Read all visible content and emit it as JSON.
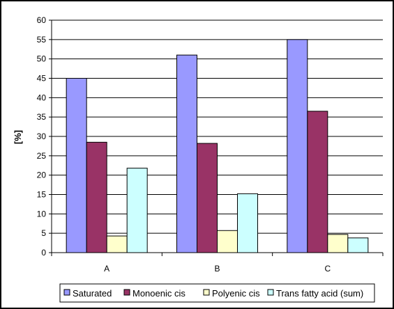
{
  "chart_data": {
    "type": "bar",
    "title": "",
    "xlabel": "",
    "ylabel": "[%]",
    "ylim": [
      0,
      60
    ],
    "yticks": [
      0,
      5,
      10,
      15,
      20,
      25,
      30,
      35,
      40,
      45,
      50,
      55,
      60
    ],
    "categories": [
      "A",
      "B",
      "C"
    ],
    "grid": true,
    "legend_position": "bottom",
    "series": [
      {
        "name": "Saturated",
        "color": "#9999FF",
        "values": [
          45,
          51,
          55
        ]
      },
      {
        "name": "Monoenic cis",
        "color": "#993366",
        "values": [
          28.5,
          28.2,
          36.5
        ]
      },
      {
        "name": "Polyenic cis",
        "color": "#FFFFCC",
        "values": [
          4.3,
          5.7,
          4.7
        ]
      },
      {
        "name": "Trans fatty acid (sum)",
        "color": "#CCFFFF",
        "values": [
          21.8,
          15.2,
          3.8
        ]
      }
    ]
  }
}
